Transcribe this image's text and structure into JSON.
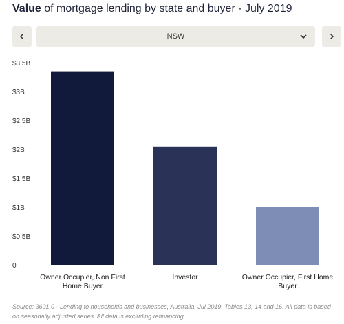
{
  "title": {
    "bold": "Value",
    "rest": " of mortgage lending by state and buyer - July 2019"
  },
  "nav": {
    "prev_icon": "chevron-left-icon",
    "next_icon": "chevron-right-icon",
    "selected_state": "NSW",
    "dropdown_icon": "chevron-down-icon"
  },
  "chart_data": {
    "type": "bar",
    "categories": [
      "Owner Occupier, Non First Home Buyer",
      "Investor",
      "Owner Occupier, First Home Buyer"
    ],
    "values": [
      3.35,
      2.05,
      1.0
    ],
    "category_lines": [
      [
        "Owner Occupier, Non First",
        "Home Buyer"
      ],
      [
        "Investor"
      ],
      [
        "Owner Occupier, First Home",
        "Buyer"
      ]
    ],
    "colors": [
      "#111a3b",
      "#2a3258",
      "#7d8db5"
    ],
    "ylim": [
      0,
      3.5
    ],
    "yticks": [
      0,
      0.5,
      1,
      1.5,
      2,
      2.5,
      3,
      3.5
    ],
    "ytick_labels": [
      "0",
      "$0.5B",
      "$1B",
      "$1.5B",
      "$2B",
      "$2.5B",
      "$3B",
      "$3.5B"
    ],
    "grid": false,
    "title": "Value of mortgage lending by state and buyer - July 2019",
    "xlabel": "",
    "ylabel": ""
  },
  "source": "Source:  3601.0 - Lending to households and businesses, Australia, Jul 2019. Tables 13, 14 and 16. All data is based on seasonally adjusted series. All data is excluding refinancing."
}
